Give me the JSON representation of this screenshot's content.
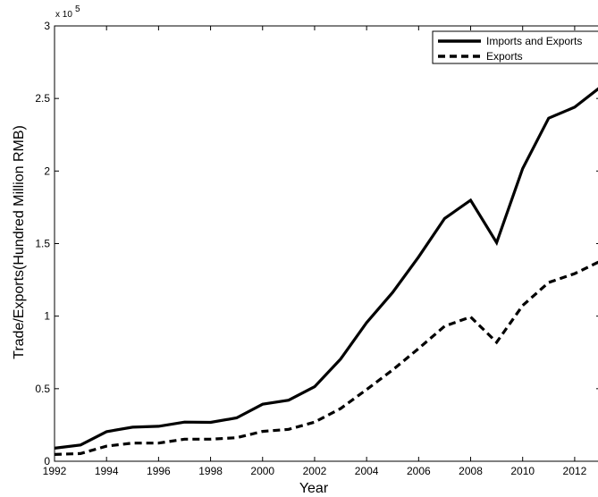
{
  "chart_data": {
    "type": "line",
    "xlabel": "Year",
    "ylabel": "Trade/Exports(Hundred Million RMB)",
    "y_multiplier_label": "x 10",
    "y_multiplier_exponent": "5",
    "xlim": [
      1992,
      2013
    ],
    "ylim": [
      0,
      3
    ],
    "x_ticks": [
      1992,
      1994,
      1996,
      1998,
      2000,
      2002,
      2004,
      2006,
      2008,
      2010,
      2012
    ],
    "y_ticks": [
      0,
      0.5,
      1,
      1.5,
      2,
      2.5,
      3
    ],
    "y_tick_labels": [
      "0",
      "0.5",
      "1",
      "1.5",
      "2",
      "2.5",
      "3"
    ],
    "x": [
      1992,
      1993,
      1994,
      1995,
      1996,
      1997,
      1998,
      1999,
      2000,
      2001,
      2002,
      2003,
      2004,
      2005,
      2006,
      2007,
      2008,
      2009,
      2010,
      2011,
      2012,
      2013
    ],
    "series": [
      {
        "name": "Imports and Exports",
        "style": "solid",
        "color": "#000000",
        "values": [
          0.09,
          0.112,
          0.204,
          0.235,
          0.241,
          0.27,
          0.268,
          0.299,
          0.393,
          0.421,
          0.514,
          0.704,
          0.955,
          1.163,
          1.408,
          1.673,
          1.799,
          1.507,
          2.017,
          2.364,
          2.44,
          2.58
        ]
      },
      {
        "name": "Exports",
        "style": "dashed",
        "color": "#000000",
        "values": [
          0.047,
          0.053,
          0.104,
          0.125,
          0.125,
          0.152,
          0.152,
          0.162,
          0.206,
          0.22,
          0.27,
          0.363,
          0.494,
          0.629,
          0.777,
          0.931,
          0.994,
          0.82,
          1.073,
          1.232,
          1.293,
          1.38
        ]
      }
    ],
    "legend_position": "top-right",
    "grid": false
  }
}
